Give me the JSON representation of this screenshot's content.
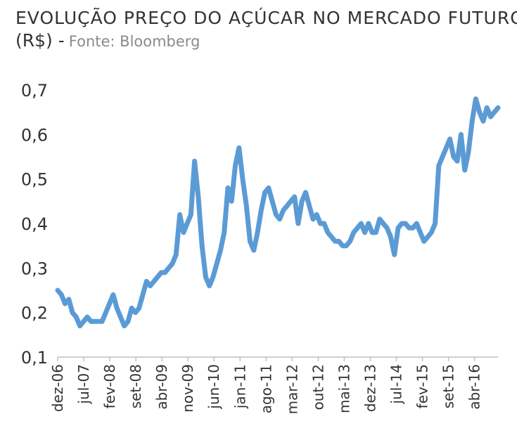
{
  "header": {
    "title": "EVOLUÇÃO PREÇO DO AÇÚCAR NO MERCADO FUTURO",
    "unit": "(R$) -",
    "source": "Fonte: Bloomberg"
  },
  "chart_data": {
    "type": "line",
    "title": "EVOLUÇÃO PREÇO DO AÇÚCAR NO MERCADO FUTURO (R$)",
    "subtitle": "Fonte: Bloomberg",
    "xlabel": "",
    "ylabel": "",
    "ylim": [
      0.1,
      0.7
    ],
    "y_ticks": [
      0.1,
      0.2,
      0.3,
      0.4,
      0.5,
      0.6,
      0.7
    ],
    "y_tick_labels": [
      "0,1",
      "0,2",
      "0,3",
      "0,4",
      "0,5",
      "0,6",
      "0,7"
    ],
    "x_range": [
      "2006-12",
      "2016-11"
    ],
    "x_tick_labels": [
      "dez-06",
      "jul-07",
      "fev-08",
      "set-08",
      "abr-09",
      "nov-09",
      "jun-10",
      "jan-11",
      "ago-11",
      "mar-12",
      "out-12",
      "mai-13",
      "dez-13",
      "jul-14",
      "fev-15",
      "set-15",
      "abr-16"
    ],
    "grid": false,
    "legend": "none",
    "line_color": "#5b9bd5",
    "series": [
      {
        "x": [
          "2006-12",
          "2007-01",
          "2007-02",
          "2007-03",
          "2007-04",
          "2007-05",
          "2007-06",
          "2007-07",
          "2007-08",
          "2007-09",
          "2007-10",
          "2007-11",
          "2007-12",
          "2008-01",
          "2008-02",
          "2008-03",
          "2008-04",
          "2008-05",
          "2008-06",
          "2008-07",
          "2008-08",
          "2008-09",
          "2008-10",
          "2008-11",
          "2008-12",
          "2009-01",
          "2009-02",
          "2009-03",
          "2009-04",
          "2009-05",
          "2009-06",
          "2009-07",
          "2009-08",
          "2009-09",
          "2009-10",
          "2009-11",
          "2009-12",
          "2010-01",
          "2010-02",
          "2010-03",
          "2010-04",
          "2010-05",
          "2010-06",
          "2010-07",
          "2010-08",
          "2010-09",
          "2010-10",
          "2010-11",
          "2010-12",
          "2011-01",
          "2011-02",
          "2011-03",
          "2011-04",
          "2011-05",
          "2011-06",
          "2011-07",
          "2011-08",
          "2011-09",
          "2011-10",
          "2011-11",
          "2011-12",
          "2012-01",
          "2012-02",
          "2012-03",
          "2012-04",
          "2012-05",
          "2012-06",
          "2012-07",
          "2012-08",
          "2012-09",
          "2012-10",
          "2012-11",
          "2012-12",
          "2013-01",
          "2013-02",
          "2013-03",
          "2013-04",
          "2013-05",
          "2013-06",
          "2013-07",
          "2013-08",
          "2013-09",
          "2013-10",
          "2013-11",
          "2013-12",
          "2014-01",
          "2014-02",
          "2014-03",
          "2014-04",
          "2014-05",
          "2014-06",
          "2014-07",
          "2014-08",
          "2014-09",
          "2014-10",
          "2014-11",
          "2014-12",
          "2015-01",
          "2015-02",
          "2015-03",
          "2015-04",
          "2015-05",
          "2015-06",
          "2015-07",
          "2015-08",
          "2015-09",
          "2015-10",
          "2015-11",
          "2015-12",
          "2016-01",
          "2016-02",
          "2016-03",
          "2016-04",
          "2016-05",
          "2016-06",
          "2016-07",
          "2016-08",
          "2016-09",
          "2016-10",
          "2016-11"
        ],
        "values": [
          0.25,
          0.24,
          0.22,
          0.23,
          0.2,
          0.19,
          0.17,
          0.18,
          0.19,
          0.18,
          0.18,
          0.18,
          0.18,
          0.2,
          0.22,
          0.24,
          0.21,
          0.19,
          0.17,
          0.18,
          0.21,
          0.2,
          0.21,
          0.24,
          0.27,
          0.26,
          0.27,
          0.28,
          0.29,
          0.29,
          0.3,
          0.31,
          0.33,
          0.42,
          0.38,
          0.4,
          0.42,
          0.54,
          0.46,
          0.35,
          0.28,
          0.26,
          0.28,
          0.31,
          0.34,
          0.38,
          0.48,
          0.45,
          0.53,
          0.57,
          0.5,
          0.44,
          0.36,
          0.34,
          0.38,
          0.43,
          0.47,
          0.48,
          0.45,
          0.42,
          0.41,
          0.43,
          0.44,
          0.45,
          0.46,
          0.4,
          0.45,
          0.47,
          0.44,
          0.41,
          0.42,
          0.4,
          0.4,
          0.38,
          0.37,
          0.36,
          0.36,
          0.35,
          0.35,
          0.36,
          0.38,
          0.39,
          0.4,
          0.38,
          0.4,
          0.38,
          0.38,
          0.41,
          0.4,
          0.39,
          0.37,
          0.33,
          0.39,
          0.4,
          0.4,
          0.39,
          0.39,
          0.4,
          0.38,
          0.36,
          0.37,
          0.38,
          0.4,
          0.53,
          0.55,
          0.57,
          0.59,
          0.55,
          0.54,
          0.6,
          0.52,
          0.56,
          0.63,
          0.68,
          0.65,
          0.63,
          0.66,
          0.64,
          0.65,
          0.66
        ]
      }
    ]
  }
}
